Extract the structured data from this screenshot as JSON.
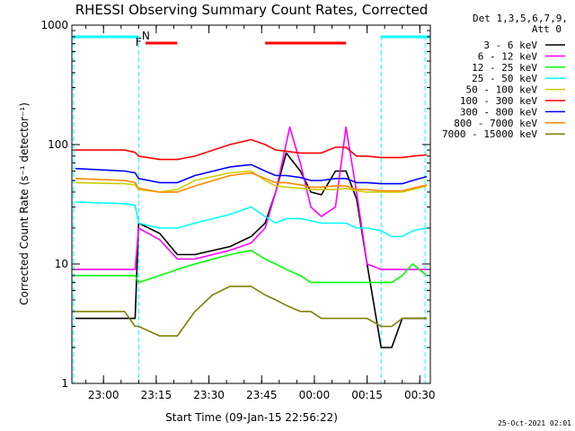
{
  "chart_data": {
    "type": "line",
    "title": "RHESSI Observing Summary Count Rates, Corrected",
    "xlabel": "Start Time (09-Jan-15 22:56:22)",
    "ylabel": "Corrected Count Rate (s⁻¹ detector⁻¹)",
    "yscale": "log",
    "ylim": [
      1,
      1000
    ],
    "xlim_minutes": [
      -5,
      97
    ],
    "y_ticks": [
      "1",
      "10",
      "100",
      "1000"
    ],
    "x_ticks": [
      "23:00",
      "23:15",
      "23:30",
      "23:45",
      "00:00",
      "00:15",
      "00:30"
    ],
    "x_tick_minutes": [
      4,
      19,
      34,
      49,
      64,
      79,
      94
    ],
    "legend_header": [
      "Det 1,3,5,6,7,9,",
      "Att 0"
    ],
    "timestamp": "25-Oct-2021 02:01",
    "flags": [
      {
        "label": "N",
        "color": "#00ffff",
        "segments": [
          [
            -5,
            14
          ],
          [
            83,
            97
          ]
        ]
      },
      {
        "label": "F",
        "color": "#ff0000",
        "segments": [
          [
            16,
            25
          ],
          [
            50,
            73
          ]
        ]
      }
    ],
    "vlines": [
      -4.5,
      14,
      83,
      95.5
    ],
    "series": [
      {
        "name": "3 - 6 keV",
        "color": "#000000",
        "points": [
          [
            -4,
            3.5
          ],
          [
            10,
            3.5
          ],
          [
            13,
            3.5
          ],
          [
            14,
            22
          ],
          [
            20,
            18
          ],
          [
            25,
            12
          ],
          [
            30,
            12
          ],
          [
            40,
            14
          ],
          [
            46,
            17
          ],
          [
            50,
            22
          ],
          [
            53,
            40
          ],
          [
            56,
            85
          ],
          [
            60,
            60
          ],
          [
            63,
            40
          ],
          [
            66,
            38
          ],
          [
            70,
            60
          ],
          [
            73,
            60
          ],
          [
            76,
            35
          ],
          [
            79,
            10
          ],
          [
            83,
            2
          ],
          [
            86,
            2
          ],
          [
            89,
            3.5
          ],
          [
            96,
            3.5
          ]
        ]
      },
      {
        "name": "6 - 12 keV",
        "color": "#ff00ff",
        "points": [
          [
            -4,
            9
          ],
          [
            10,
            9
          ],
          [
            13,
            9
          ],
          [
            14,
            20
          ],
          [
            20,
            16
          ],
          [
            25,
            11
          ],
          [
            30,
            11
          ],
          [
            40,
            13
          ],
          [
            46,
            15
          ],
          [
            50,
            20
          ],
          [
            53,
            40
          ],
          [
            57,
            140
          ],
          [
            60,
            70
          ],
          [
            63,
            30
          ],
          [
            66,
            25
          ],
          [
            70,
            30
          ],
          [
            73,
            140
          ],
          [
            76,
            40
          ],
          [
            79,
            10
          ],
          [
            83,
            9
          ],
          [
            86,
            9
          ],
          [
            89,
            9
          ],
          [
            96,
            9
          ]
        ]
      },
      {
        "name": "12 - 25 keV",
        "color": "#00ff00",
        "points": [
          [
            -4,
            8
          ],
          [
            10,
            8
          ],
          [
            13,
            8
          ],
          [
            14,
            7
          ],
          [
            20,
            8
          ],
          [
            25,
            9
          ],
          [
            30,
            10
          ],
          [
            40,
            12
          ],
          [
            46,
            13
          ],
          [
            50,
            11
          ],
          [
            53,
            10
          ],
          [
            56,
            9
          ],
          [
            60,
            8
          ],
          [
            63,
            7
          ],
          [
            66,
            7
          ],
          [
            70,
            7
          ],
          [
            73,
            7
          ],
          [
            76,
            7
          ],
          [
            79,
            7
          ],
          [
            83,
            7
          ],
          [
            86,
            7
          ],
          [
            89,
            8
          ],
          [
            92,
            10
          ],
          [
            96,
            8
          ]
        ]
      },
      {
        "name": "25 - 50 keV",
        "color": "#00ffff",
        "points": [
          [
            -4,
            33
          ],
          [
            10,
            32
          ],
          [
            13,
            31
          ],
          [
            14,
            22
          ],
          [
            20,
            20
          ],
          [
            25,
            20
          ],
          [
            30,
            22
          ],
          [
            40,
            26
          ],
          [
            46,
            30
          ],
          [
            50,
            25
          ],
          [
            53,
            22
          ],
          [
            56,
            24
          ],
          [
            60,
            24
          ],
          [
            63,
            23
          ],
          [
            66,
            22
          ],
          [
            70,
            22
          ],
          [
            73,
            22
          ],
          [
            76,
            20
          ],
          [
            79,
            20
          ],
          [
            83,
            19
          ],
          [
            86,
            17
          ],
          [
            89,
            17
          ],
          [
            92,
            19
          ],
          [
            96,
            20
          ]
        ]
      },
      {
        "name": "50 - 100 keV",
        "color": "#cccc00",
        "points": [
          [
            -4,
            48
          ],
          [
            10,
            47
          ],
          [
            13,
            46
          ],
          [
            14,
            42
          ],
          [
            20,
            40
          ],
          [
            25,
            42
          ],
          [
            30,
            50
          ],
          [
            40,
            58
          ],
          [
            46,
            60
          ],
          [
            50,
            50
          ],
          [
            53,
            45
          ],
          [
            56,
            44
          ],
          [
            60,
            43
          ],
          [
            63,
            42
          ],
          [
            66,
            42
          ],
          [
            70,
            42
          ],
          [
            73,
            43
          ],
          [
            76,
            41
          ],
          [
            79,
            40
          ],
          [
            83,
            40
          ],
          [
            86,
            40
          ],
          [
            89,
            40
          ],
          [
            92,
            42
          ],
          [
            96,
            45
          ]
        ]
      },
      {
        "name": "100 - 300 keV",
        "color": "#ff0000",
        "points": [
          [
            -4,
            90
          ],
          [
            10,
            90
          ],
          [
            13,
            86
          ],
          [
            14,
            80
          ],
          [
            20,
            75
          ],
          [
            25,
            75
          ],
          [
            30,
            80
          ],
          [
            40,
            100
          ],
          [
            46,
            110
          ],
          [
            50,
            100
          ],
          [
            53,
            90
          ],
          [
            56,
            88
          ],
          [
            60,
            85
          ],
          [
            63,
            85
          ],
          [
            66,
            85
          ],
          [
            70,
            95
          ],
          [
            73,
            95
          ],
          [
            76,
            80
          ],
          [
            79,
            80
          ],
          [
            83,
            78
          ],
          [
            86,
            78
          ],
          [
            89,
            78
          ],
          [
            92,
            80
          ],
          [
            96,
            82
          ]
        ]
      },
      {
        "name": "300 - 800 keV",
        "color": "#0000ff",
        "points": [
          [
            -4,
            63
          ],
          [
            10,
            60
          ],
          [
            13,
            58
          ],
          [
            14,
            52
          ],
          [
            20,
            48
          ],
          [
            25,
            48
          ],
          [
            30,
            55
          ],
          [
            40,
            65
          ],
          [
            46,
            68
          ],
          [
            50,
            60
          ],
          [
            53,
            55
          ],
          [
            56,
            55
          ],
          [
            60,
            53
          ],
          [
            63,
            50
          ],
          [
            66,
            50
          ],
          [
            70,
            52
          ],
          [
            73,
            52
          ],
          [
            76,
            48
          ],
          [
            79,
            48
          ],
          [
            83,
            47
          ],
          [
            86,
            47
          ],
          [
            89,
            47
          ],
          [
            92,
            50
          ],
          [
            96,
            54
          ]
        ]
      },
      {
        "name": "800 - 7000 keV",
        "color": "#ff8800",
        "points": [
          [
            -4,
            52
          ],
          [
            10,
            50
          ],
          [
            13,
            48
          ],
          [
            14,
            43
          ],
          [
            20,
            40
          ],
          [
            25,
            40
          ],
          [
            30,
            45
          ],
          [
            40,
            55
          ],
          [
            46,
            58
          ],
          [
            50,
            52
          ],
          [
            53,
            48
          ],
          [
            56,
            48
          ],
          [
            60,
            46
          ],
          [
            63,
            44
          ],
          [
            66,
            44
          ],
          [
            70,
            45
          ],
          [
            73,
            45
          ],
          [
            76,
            42
          ],
          [
            79,
            42
          ],
          [
            83,
            41
          ],
          [
            86,
            41
          ],
          [
            89,
            41
          ],
          [
            92,
            43
          ],
          [
            96,
            46
          ]
        ]
      },
      {
        "name": "7000 - 15000 keV",
        "color": "#808000",
        "points": [
          [
            -4,
            4
          ],
          [
            10,
            4
          ],
          [
            13,
            3
          ],
          [
            14,
            3
          ],
          [
            20,
            2.5
          ],
          [
            25,
            2.5
          ],
          [
            30,
            4
          ],
          [
            35,
            5.5
          ],
          [
            40,
            6.5
          ],
          [
            46,
            6.5
          ],
          [
            50,
            5.5
          ],
          [
            53,
            5
          ],
          [
            56,
            4.5
          ],
          [
            60,
            4
          ],
          [
            63,
            4
          ],
          [
            66,
            3.5
          ],
          [
            70,
            3.5
          ],
          [
            73,
            3.5
          ],
          [
            76,
            3.5
          ],
          [
            79,
            3.5
          ],
          [
            83,
            3
          ],
          [
            86,
            3
          ],
          [
            89,
            3.5
          ],
          [
            96,
            3.5
          ]
        ]
      }
    ]
  }
}
